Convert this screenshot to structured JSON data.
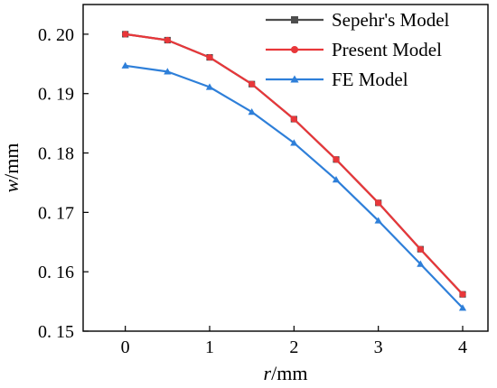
{
  "chart_data": {
    "type": "line",
    "x": [
      0,
      0.5,
      1,
      1.5,
      2,
      2.5,
      3,
      3.5,
      4
    ],
    "series": [
      {
        "name": "Sepehr's Model",
        "color": "#4d4d4d",
        "marker": "square",
        "values": [
          0.2,
          0.199,
          0.1961,
          0.1916,
          0.1857,
          0.1789,
          0.1716,
          0.1638,
          0.1562
        ]
      },
      {
        "name": "Present Model",
        "color": "#e8373a",
        "marker": "circle",
        "values": [
          0.2,
          0.199,
          0.1961,
          0.1916,
          0.1857,
          0.1789,
          0.1716,
          0.1638,
          0.1562
        ]
      },
      {
        "name": "FE Model",
        "color": "#2e7fd9",
        "marker": "triangle",
        "values": [
          0.1947,
          0.1937,
          0.1911,
          0.1869,
          0.1817,
          0.1755,
          0.1686,
          0.1613,
          0.1539
        ]
      }
    ],
    "xlabel_italic": "r",
    "xlabel_unit": "/mm",
    "ylabel_italic": "w",
    "ylabel_unit": "/mm",
    "xlim": [
      -0.5,
      4.3
    ],
    "ylim": [
      0.15,
      0.205
    ],
    "xticks": [
      0,
      1,
      2,
      3,
      4
    ],
    "xtick_labels": [
      "0",
      "1",
      "2",
      "3",
      "4"
    ],
    "yticks": [
      0.15,
      0.16,
      0.17,
      0.18,
      0.19,
      0.2
    ],
    "ytick_labels": [
      "0. 15",
      "0. 16",
      "0. 17",
      "0. 18",
      "0. 19",
      "0. 20"
    ],
    "grid": false,
    "legend_position": "top-right"
  }
}
